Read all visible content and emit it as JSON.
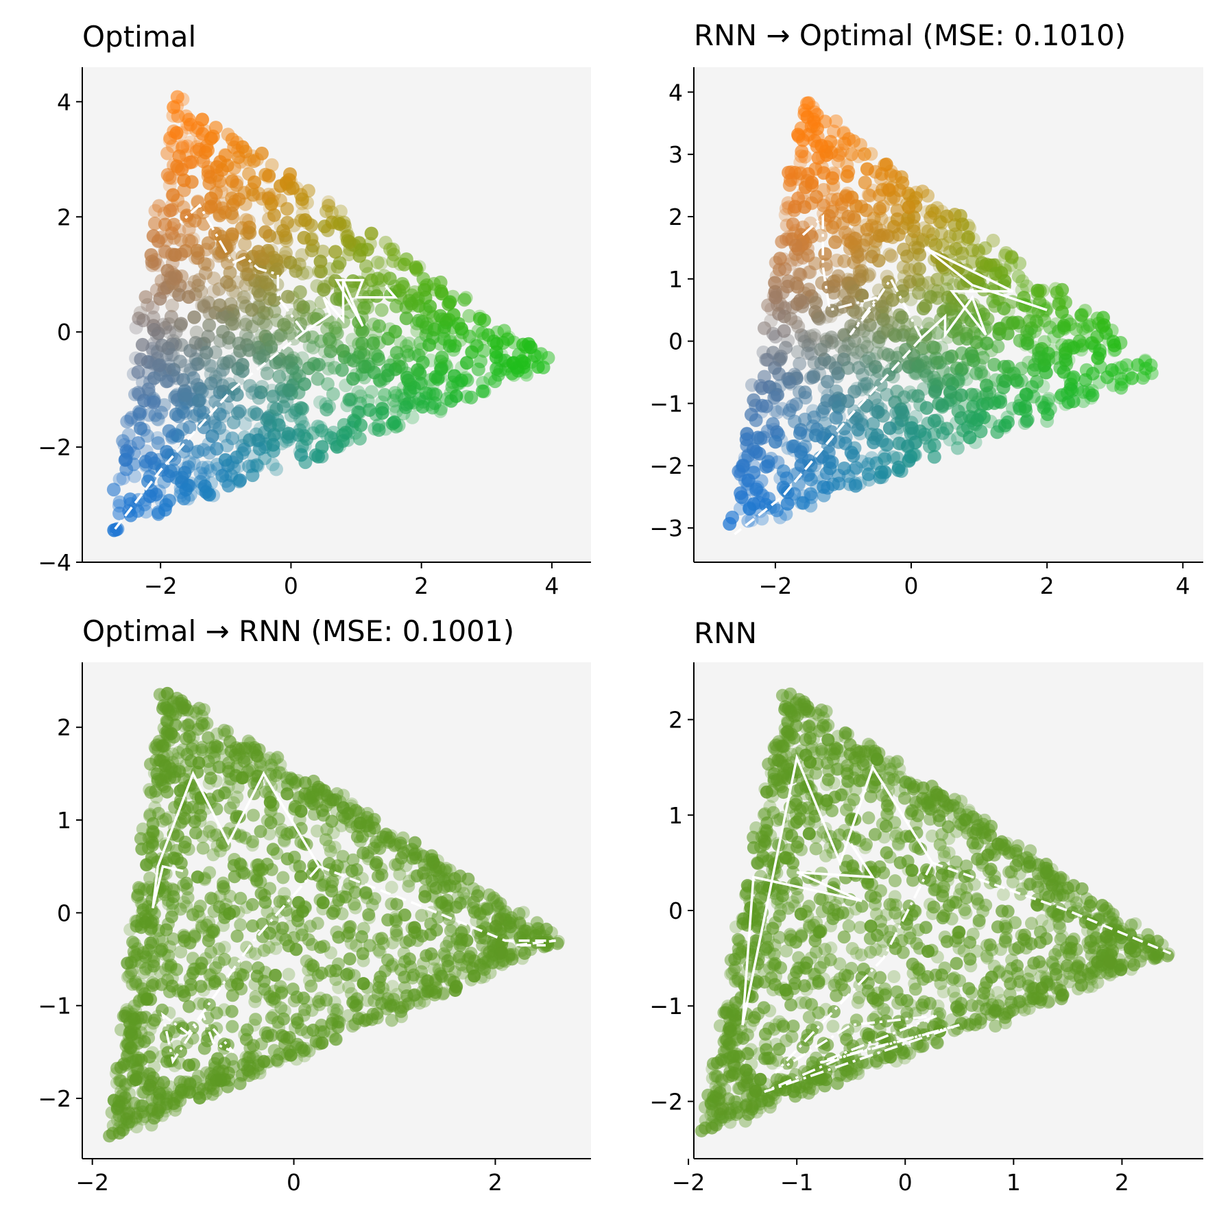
{
  "figure": {
    "background": "#ffffff",
    "axes_facecolor": "#f4f4f4",
    "palette": {
      "orange": "#ff7f0e",
      "green": "#1fbf1a",
      "blue": "#1f77d4",
      "olive": "#5e9a24",
      "path": "#ffffff"
    }
  },
  "chart_data": [
    {
      "type": "scatter",
      "title": "Optimal",
      "coloring": "gradient",
      "xlim": [
        -3.2,
        4.6
      ],
      "ylim": [
        -4.0,
        4.6
      ],
      "xticks": [
        -2,
        0,
        2,
        4
      ],
      "xtick_labels": [
        "−2",
        "0",
        "2",
        "4"
      ],
      "yticks": [
        -4,
        -2,
        0,
        2,
        4
      ],
      "ytick_labels": [
        "−4",
        "−2",
        "0",
        "2",
        "4"
      ],
      "vertices": {
        "orange": [
          -1.8,
          4.2
        ],
        "green": [
          4.1,
          -0.6
        ],
        "blue": [
          -2.8,
          -3.5
        ]
      },
      "center": [
        0.2,
        0.0
      ],
      "paths": [
        {
          "style": "dashed",
          "points": [
            [
              0.2,
              0.0
            ],
            [
              -0.9,
              -1.0
            ],
            [
              -2.0,
              -2.4
            ],
            [
              -2.75,
              -3.5
            ]
          ]
        },
        {
          "style": "solid",
          "points": [
            [
              0.2,
              0.0
            ],
            [
              0.6,
              0.3
            ],
            [
              0.5,
              0.6
            ],
            [
              0.8,
              0.2
            ],
            [
              0.8,
              0.9
            ],
            [
              1.1,
              0.1
            ],
            [
              0.7,
              0.9
            ],
            [
              1.1,
              0.9
            ],
            [
              1.0,
              0.6
            ],
            [
              1.6,
              0.6
            ],
            [
              1.45,
              0.8
            ]
          ]
        },
        {
          "style": "dashdot",
          "points": [
            [
              0.2,
              0.0
            ],
            [
              -0.2,
              0.6
            ],
            [
              -0.2,
              1.0
            ],
            [
              -0.5,
              1.1
            ],
            [
              -0.7,
              1.3
            ],
            [
              -0.9,
              1.2
            ],
            [
              -1.4,
              2.2
            ],
            [
              -1.7,
              1.9
            ]
          ]
        }
      ]
    },
    {
      "type": "scatter",
      "title": "RNN → Optimal (MSE: 0.1010)",
      "coloring": "gradient",
      "xlim": [
        -3.2,
        4.3
      ],
      "ylim": [
        -3.55,
        4.4
      ],
      "xticks": [
        -2,
        0,
        2,
        4
      ],
      "xtick_labels": [
        "−2",
        "0",
        "2",
        "4"
      ],
      "yticks": [
        -3,
        -2,
        -1,
        0,
        1,
        2,
        3,
        4
      ],
      "ytick_labels": [
        "−3",
        "−2",
        "−1",
        "0",
        "1",
        "2",
        "3",
        "4"
      ],
      "vertices": {
        "orange": [
          -1.6,
          3.9
        ],
        "green": [
          3.8,
          -0.5
        ],
        "blue": [
          -2.7,
          -3.1
        ]
      },
      "center": [
        0.15,
        0.05
      ],
      "paths": [
        {
          "style": "dashed",
          "points": [
            [
              0.15,
              0.05
            ],
            [
              -0.9,
              -1.2
            ],
            [
              -1.9,
              -2.5
            ],
            [
              -2.6,
              -3.1
            ]
          ]
        },
        {
          "style": "solid",
          "points": [
            [
              0.15,
              0.05
            ],
            [
              0.5,
              0.4
            ],
            [
              0.5,
              0.1
            ],
            [
              0.9,
              0.7
            ],
            [
              1.1,
              0.1
            ],
            [
              0.6,
              0.8
            ],
            [
              1.5,
              0.8
            ],
            [
              0.2,
              1.5
            ],
            [
              0.9,
              0.9
            ],
            [
              2.0,
              0.5
            ]
          ]
        },
        {
          "style": "dashdot",
          "points": [
            [
              0.15,
              0.05
            ],
            [
              -0.3,
              1.0
            ],
            [
              -0.6,
              0.5
            ],
            [
              -0.9,
              0.1
            ],
            [
              -0.5,
              0.7
            ],
            [
              -1.2,
              0.5
            ],
            [
              -1.3,
              1.2
            ],
            [
              -1.3,
              2.0
            ],
            [
              -1.6,
              1.7
            ]
          ]
        }
      ]
    },
    {
      "type": "scatter",
      "title": "Optimal → RNN (MSE: 0.1001)",
      "coloring": "single",
      "color": "#5e9a24",
      "xlim": [
        -2.1,
        2.95
      ],
      "ylim": [
        -2.65,
        2.7
      ],
      "xticks": [
        -2,
        0,
        2
      ],
      "xtick_labels": [
        "−2",
        "0",
        "2"
      ],
      "yticks": [
        -2,
        -1,
        0,
        1,
        2
      ],
      "ytick_labels": [
        "−2",
        "−1",
        "0",
        "1",
        "2"
      ],
      "vertices": {
        "top": [
          -1.3,
          2.4
        ],
        "right": [
          2.7,
          -0.3
        ],
        "bottom": [
          -1.8,
          -2.4
        ]
      },
      "center": [
        0.25,
        0.5
      ],
      "paths": [
        {
          "style": "dashed",
          "points": [
            [
              0.25,
              0.5
            ],
            [
              1.2,
              0.1
            ],
            [
              2.1,
              -0.3
            ],
            [
              2.6,
              -0.3
            ],
            [
              2.2,
              -0.35
            ],
            [
              2.5,
              -0.35
            ]
          ]
        },
        {
          "style": "solid",
          "points": [
            [
              0.25,
              0.5
            ],
            [
              -0.3,
              1.5
            ],
            [
              -0.65,
              0.75
            ],
            [
              -1.0,
              1.5
            ],
            [
              -1.35,
              0.5
            ],
            [
              -1.4,
              0.05
            ],
            [
              -1.3,
              0.5
            ],
            [
              -1.1,
              0.45
            ]
          ]
        },
        {
          "style": "dashdot",
          "points": [
            [
              0.25,
              0.5
            ],
            [
              -0.4,
              -0.3
            ],
            [
              -1.05,
              -1.3
            ],
            [
              -1.3,
              -1.1
            ],
            [
              -1.2,
              -1.6
            ],
            [
              -0.9,
              -1.1
            ],
            [
              -0.8,
              -1.4
            ],
            [
              -0.6,
              -1.5
            ],
            [
              -0.8,
              -1.25
            ]
          ]
        }
      ]
    },
    {
      "type": "scatter",
      "title": "RNN",
      "coloring": "single",
      "color": "#5e9a24",
      "xlim": [
        -1.95,
        2.75
      ],
      "ylim": [
        -2.6,
        2.6
      ],
      "xticks": [
        -2,
        -1,
        0,
        1,
        2
      ],
      "xtick_labels": [
        "−2",
        "−1",
        "0",
        "1",
        "2"
      ],
      "yticks": [
        -2,
        -1,
        0,
        1,
        2
      ],
      "ytick_labels": [
        "−2",
        "−1",
        "0",
        "1",
        "2"
      ],
      "vertices": {
        "top": [
          -1.1,
          2.3
        ],
        "right": [
          2.5,
          -0.45
        ],
        "bottom": [
          -1.85,
          -2.3
        ]
      },
      "center": [
        0.25,
        0.5
      ],
      "paths": [
        {
          "style": "dashed",
          "points": [
            [
              0.25,
              0.5
            ],
            [
              1.5,
              0.0
            ],
            [
              2.45,
              -0.45
            ]
          ]
        },
        {
          "style": "solid",
          "points": [
            [
              0.25,
              0.5
            ],
            [
              -0.3,
              1.5
            ],
            [
              -0.6,
              0.5
            ],
            [
              -1.0,
              1.6
            ],
            [
              -1.5,
              -1.2
            ],
            [
              -1.4,
              0.35
            ],
            [
              -0.4,
              0.1
            ],
            [
              -1.0,
              0.4
            ],
            [
              -0.3,
              0.35
            ],
            [
              -0.5,
              0.7
            ]
          ]
        },
        {
          "style": "dashdot",
          "points": [
            [
              0.25,
              0.5
            ],
            [
              -0.2,
              -0.5
            ],
            [
              -1.2,
              -1.7
            ],
            [
              -0.5,
              -1.2
            ],
            [
              0.3,
              -1.1
            ],
            [
              -0.8,
              -1.6
            ],
            [
              0.5,
              -1.2
            ],
            [
              -1.3,
              -1.9
            ],
            [
              -0.5,
              -1.5
            ],
            [
              0.5,
              -1.2
            ]
          ]
        }
      ]
    }
  ]
}
